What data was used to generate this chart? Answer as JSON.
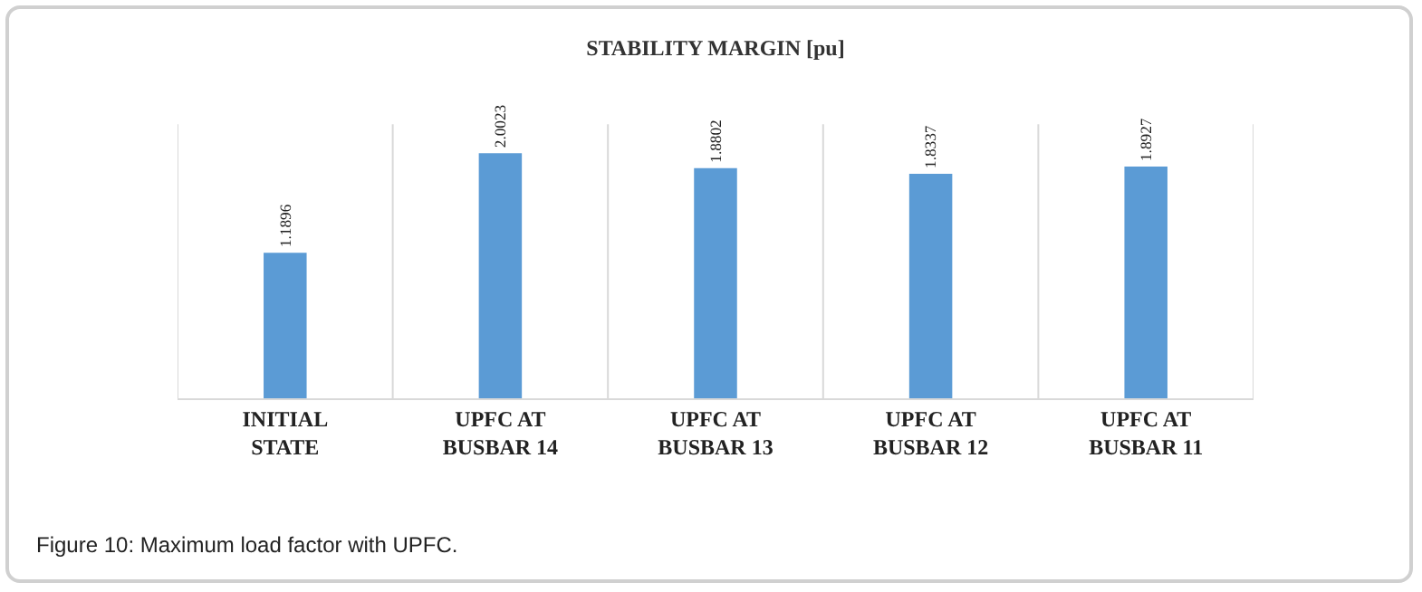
{
  "chart_data": {
    "type": "bar",
    "title": "STABILITY MARGIN [pu]",
    "categories": [
      "INITIAL STATE",
      "UPFC AT BUSBAR 14",
      "UPFC AT BUSBAR 13",
      "UPFC AT BUSBAR 12",
      "UPFC AT BUSBAR 11"
    ],
    "values": [
      1.1896,
      2.0023,
      1.8802,
      1.8337,
      1.8927
    ],
    "color": "#5b9bd5",
    "data_labels": true,
    "grid": "x",
    "legend": false,
    "tick_labels": "x",
    "annotations": [
      "Figure 10: Maximum load factor with UPFC."
    ]
  }
}
